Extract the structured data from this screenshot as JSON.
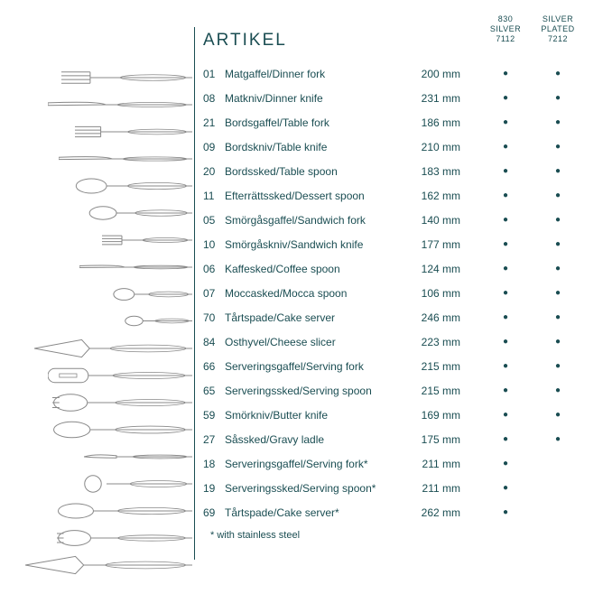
{
  "title": "ARTIKEL",
  "columns": {
    "col1": "830\nSILVER\n7112",
    "col2": "SILVER\nPLATED\n7212"
  },
  "items": [
    {
      "num": "01",
      "name": "Matgaffel/Dinner fork",
      "size": "200 mm",
      "c1": true,
      "c2": true
    },
    {
      "num": "08",
      "name": "Matkniv/Dinner knife",
      "size": "231 mm",
      "c1": true,
      "c2": true
    },
    {
      "num": "21",
      "name": "Bordsgaffel/Table fork",
      "size": "186 mm",
      "c1": true,
      "c2": true
    },
    {
      "num": "09",
      "name": "Bordskniv/Table knife",
      "size": "210 mm",
      "c1": true,
      "c2": true
    },
    {
      "num": "20",
      "name": "Bordssked/Table spoon",
      "size": "183 mm",
      "c1": true,
      "c2": true
    },
    {
      "num": "11",
      "name": "Efterrättssked/Dessert spoon",
      "size": "162 mm",
      "c1": true,
      "c2": true
    },
    {
      "num": "05",
      "name": "Smörgåsgaffel/Sandwich fork",
      "size": "140 mm",
      "c1": true,
      "c2": true
    },
    {
      "num": "10",
      "name": "Smörgåskniv/Sandwich knife",
      "size": "177 mm",
      "c1": true,
      "c2": true
    },
    {
      "num": "06",
      "name": "Kaffesked/Coffee spoon",
      "size": "124 mm",
      "c1": true,
      "c2": true
    },
    {
      "num": "07",
      "name": "Moccasked/Mocca spoon",
      "size": "106 mm",
      "c1": true,
      "c2": true
    },
    {
      "num": "70",
      "name": "Tårtspade/Cake server",
      "size": "246 mm",
      "c1": true,
      "c2": true
    },
    {
      "num": "84",
      "name": "Osthyvel/Cheese slicer",
      "size": "223 mm",
      "c1": true,
      "c2": true
    },
    {
      "num": "66",
      "name": "Serveringsgaffel/Serving fork",
      "size": "215 mm",
      "c1": true,
      "c2": true
    },
    {
      "num": "65",
      "name": "Serveringssked/Serving spoon",
      "size": "215 mm",
      "c1": true,
      "c2": true
    },
    {
      "num": "59",
      "name": "Smörkniv/Butter knife",
      "size": "169 mm",
      "c1": true,
      "c2": true
    },
    {
      "num": "27",
      "name": "Såssked/Gravy ladle",
      "size": "175 mm",
      "c1": true,
      "c2": true
    },
    {
      "num": "18",
      "name": "Serveringsgaffel/Serving fork*",
      "size": "211 mm",
      "c1": true,
      "c2": false
    },
    {
      "num": "19",
      "name": "Serveringssked/Serving spoon*",
      "size": "211 mm",
      "c1": true,
      "c2": false
    },
    {
      "num": "69",
      "name": "Tårtspade/Cake server*",
      "size": "262 mm",
      "c1": true,
      "c2": false
    }
  ],
  "footnote": "* with stainless steel",
  "colors": {
    "text": "#1a4d52",
    "stroke": "#888888"
  }
}
